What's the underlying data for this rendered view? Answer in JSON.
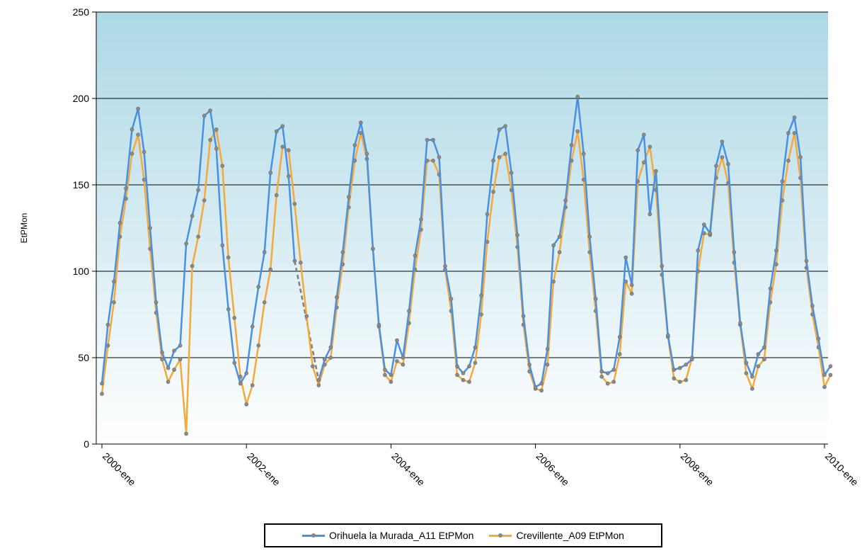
{
  "chart_data": {
    "type": "line",
    "ylabel": "EtPMon",
    "xlabel": "",
    "ylim": [
      0,
      250
    ],
    "yticks": [
      "0",
      "50",
      "100",
      "150",
      "200",
      "250"
    ],
    "grid": "horizontal",
    "legend_position": "bottom-center",
    "x_start": "2000-ene",
    "x_end": "2010-ene",
    "xtick_labels": [
      "2000-ene",
      "2002-ene",
      "2004-ene",
      "2006-ene",
      "2008-ene",
      "2010-ene"
    ],
    "gap_line": {
      "from_month": 25,
      "to_month": 36,
      "color": "#7f7f7f",
      "style": "dashed"
    },
    "series": [
      {
        "name": "Orihuela la Murada_A11 EtPMon",
        "color": "#4a90e2",
        "values": [
          [
            0,
            35
          ],
          [
            1,
            69
          ],
          [
            2,
            94
          ],
          [
            3,
            128
          ],
          [
            4,
            148
          ],
          [
            5,
            182
          ],
          [
            6,
            194
          ],
          [
            7,
            169
          ],
          [
            8,
            125
          ],
          [
            9,
            82
          ],
          [
            10,
            53
          ],
          [
            11,
            44
          ],
          [
            12,
            54
          ],
          [
            13,
            57
          ],
          [
            14,
            116
          ],
          [
            15,
            132
          ],
          [
            16,
            147
          ],
          [
            17,
            190
          ],
          [
            18,
            193
          ],
          [
            19,
            171
          ],
          [
            20,
            115
          ],
          [
            21,
            78
          ],
          [
            22,
            47
          ],
          [
            23,
            35
          ],
          [
            24,
            41
          ],
          [
            25,
            68
          ],
          [
            26,
            91
          ],
          [
            27,
            111
          ],
          [
            28,
            157
          ],
          [
            29,
            181
          ],
          [
            30,
            184
          ],
          [
            31,
            155
          ],
          [
            32,
            106
          ],
          [
            36,
            37
          ],
          [
            37,
            49
          ],
          [
            38,
            56
          ],
          [
            39,
            85
          ],
          [
            40,
            111
          ],
          [
            41,
            143
          ],
          [
            42,
            173
          ],
          [
            43,
            186
          ],
          [
            44,
            168
          ],
          [
            45,
            113
          ],
          [
            46,
            69
          ],
          [
            47,
            43
          ],
          [
            48,
            40
          ],
          [
            49,
            60
          ],
          [
            50,
            50
          ],
          [
            51,
            77
          ],
          [
            52,
            109
          ],
          [
            53,
            130
          ],
          [
            54,
            176
          ],
          [
            55,
            176
          ],
          [
            56,
            166
          ],
          [
            57,
            103
          ],
          [
            58,
            84
          ],
          [
            59,
            45
          ],
          [
            60,
            41
          ],
          [
            61,
            45
          ],
          [
            62,
            56
          ],
          [
            63,
            86
          ],
          [
            64,
            133
          ],
          [
            65,
            164
          ],
          [
            66,
            182
          ],
          [
            67,
            184
          ],
          [
            68,
            157
          ],
          [
            69,
            121
          ],
          [
            70,
            74
          ],
          [
            71,
            46
          ],
          [
            72,
            33
          ],
          [
            73,
            35
          ],
          [
            74,
            55
          ],
          [
            75,
            115
          ],
          [
            76,
            120
          ],
          [
            77,
            141
          ],
          [
            78,
            173
          ],
          [
            79,
            201
          ],
          [
            80,
            168
          ],
          [
            81,
            120
          ],
          [
            82,
            84
          ],
          [
            83,
            42
          ],
          [
            84,
            41
          ],
          [
            85,
            43
          ],
          [
            86,
            62
          ],
          [
            87,
            108
          ],
          [
            88,
            92
          ],
          [
            89,
            170
          ],
          [
            90,
            179
          ],
          [
            91,
            133
          ],
          [
            92,
            158
          ],
          [
            93,
            103
          ],
          [
            94,
            63
          ],
          [
            95,
            43
          ],
          [
            96,
            44
          ],
          [
            97,
            46
          ],
          [
            98,
            49
          ],
          [
            99,
            112
          ],
          [
            100,
            127
          ],
          [
            101,
            122
          ],
          [
            102,
            161
          ],
          [
            103,
            175
          ],
          [
            104,
            162
          ],
          [
            105,
            111
          ],
          [
            106,
            70
          ],
          [
            107,
            47
          ],
          [
            108,
            39
          ],
          [
            109,
            52
          ],
          [
            110,
            56
          ],
          [
            111,
            90
          ],
          [
            112,
            112
          ],
          [
            113,
            152
          ],
          [
            114,
            180
          ],
          [
            115,
            189
          ],
          [
            116,
            166
          ],
          [
            117,
            106
          ],
          [
            118,
            80
          ],
          [
            119,
            61
          ],
          [
            120,
            40
          ],
          [
            121,
            45
          ]
        ]
      },
      {
        "name": "Crevillente_A09 EtPMon",
        "color": "#f5a93a",
        "values": [
          [
            0,
            29
          ],
          [
            1,
            57
          ],
          [
            2,
            82
          ],
          [
            3,
            120
          ],
          [
            4,
            142
          ],
          [
            5,
            168
          ],
          [
            6,
            179
          ],
          [
            7,
            153
          ],
          [
            8,
            113
          ],
          [
            9,
            76
          ],
          [
            10,
            49
          ],
          [
            11,
            36
          ],
          [
            12,
            43
          ],
          [
            13,
            49
          ],
          [
            14,
            6
          ],
          [
            15,
            103
          ],
          [
            16,
            120
          ],
          [
            17,
            141
          ],
          [
            18,
            176
          ],
          [
            19,
            182
          ],
          [
            20,
            161
          ],
          [
            21,
            108
          ],
          [
            22,
            73
          ],
          [
            23,
            39
          ],
          [
            24,
            23
          ],
          [
            25,
            34
          ],
          [
            26,
            57
          ],
          [
            27,
            82
          ],
          [
            28,
            101
          ],
          [
            29,
            144
          ],
          [
            30,
            172
          ],
          [
            31,
            170
          ],
          [
            32,
            139
          ],
          [
            33,
            105
          ],
          [
            34,
            74
          ],
          [
            35,
            45
          ],
          [
            36,
            34
          ],
          [
            37,
            46
          ],
          [
            38,
            50
          ],
          [
            39,
            79
          ],
          [
            40,
            104
          ],
          [
            41,
            137
          ],
          [
            42,
            164
          ],
          [
            43,
            180
          ],
          [
            44,
            165
          ],
          [
            45,
            113
          ],
          [
            46,
            68
          ],
          [
            47,
            40
          ],
          [
            48,
            36
          ],
          [
            49,
            48
          ],
          [
            50,
            46
          ],
          [
            51,
            70
          ],
          [
            52,
            101
          ],
          [
            53,
            124
          ],
          [
            54,
            164
          ],
          [
            55,
            164
          ],
          [
            56,
            156
          ],
          [
            57,
            101
          ],
          [
            58,
            77
          ],
          [
            59,
            40
          ],
          [
            60,
            37
          ],
          [
            61,
            36
          ],
          [
            62,
            47
          ],
          [
            63,
            75
          ],
          [
            64,
            117
          ],
          [
            65,
            146
          ],
          [
            66,
            166
          ],
          [
            67,
            168
          ],
          [
            68,
            147
          ],
          [
            69,
            114
          ],
          [
            70,
            69
          ],
          [
            71,
            42
          ],
          [
            72,
            32
          ],
          [
            73,
            31
          ],
          [
            74,
            46
          ],
          [
            75,
            94
          ],
          [
            76,
            111
          ],
          [
            77,
            137
          ],
          [
            78,
            164
          ],
          [
            79,
            181
          ],
          [
            80,
            153
          ],
          [
            81,
            111
          ],
          [
            82,
            77
          ],
          [
            83,
            39
          ],
          [
            84,
            35
          ],
          [
            85,
            36
          ],
          [
            86,
            52
          ],
          [
            87,
            94
          ],
          [
            88,
            87
          ],
          [
            89,
            152
          ],
          [
            90,
            163
          ],
          [
            91,
            172
          ],
          [
            92,
            147
          ],
          [
            93,
            98
          ],
          [
            94,
            62
          ],
          [
            95,
            38
          ],
          [
            96,
            36
          ],
          [
            97,
            37
          ],
          [
            98,
            50
          ],
          [
            99,
            100
          ],
          [
            100,
            122
          ],
          [
            101,
            121
          ],
          [
            102,
            154
          ],
          [
            103,
            166
          ],
          [
            104,
            151
          ],
          [
            105,
            105
          ],
          [
            106,
            69
          ],
          [
            107,
            41
          ],
          [
            108,
            32
          ],
          [
            109,
            45
          ],
          [
            110,
            49
          ],
          [
            111,
            82
          ],
          [
            112,
            104
          ],
          [
            113,
            141
          ],
          [
            114,
            164
          ],
          [
            115,
            180
          ],
          [
            116,
            154
          ],
          [
            117,
            102
          ],
          [
            118,
            75
          ],
          [
            119,
            56
          ],
          [
            120,
            33
          ],
          [
            121,
            40
          ]
        ]
      }
    ]
  }
}
